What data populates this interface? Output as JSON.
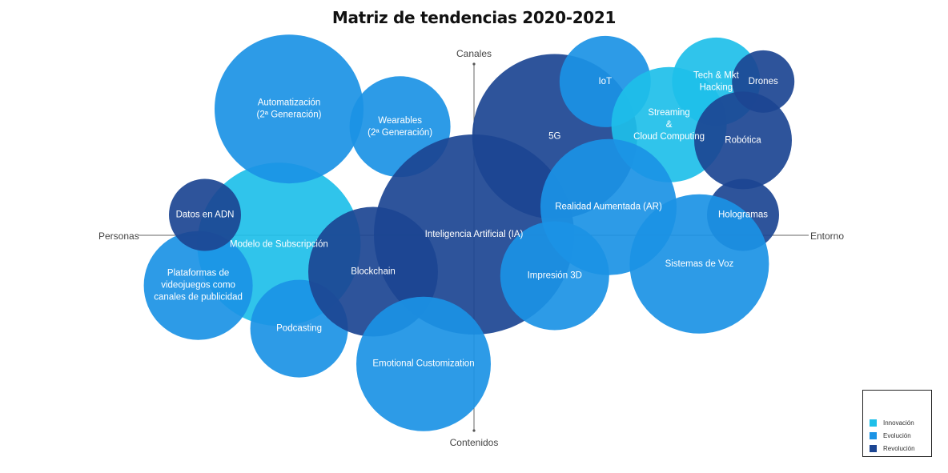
{
  "chart_data": {
    "type": "bubble",
    "title": "Matriz de tendencias 2020-2021",
    "axes": {
      "top": "Canales",
      "bottom": "Contenidos",
      "left": "Personas",
      "right": "Entorno"
    },
    "categories": [
      {
        "name": "Innovación",
        "color": "#1ebfe9"
      },
      {
        "name": "Evolución",
        "color": "#1b93e5"
      },
      {
        "name": "Revolución",
        "color": "#1c4592"
      }
    ],
    "bubbles": [
      {
        "label": [
          "Modelo de Subscripción"
        ],
        "category": "Innovación",
        "x": -0.58,
        "y": -0.05,
        "size": 102
      },
      {
        "label": [
          "Automatización",
          "(2ª Generación)"
        ],
        "category": "Evolución",
        "x": -0.55,
        "y": 0.64,
        "size": 93
      },
      {
        "label": [
          "Wearables",
          "(2ª Generación)"
        ],
        "category": "Evolución",
        "x": -0.22,
        "y": 0.55,
        "size": 63
      },
      {
        "label": [
          "Plataformas de",
          "videojuegos como",
          "canales de publicidad"
        ],
        "category": "Evolución",
        "x": -0.82,
        "y": -0.26,
        "size": 68
      },
      {
        "label": [
          "Podcasting"
        ],
        "category": "Evolución",
        "x": -0.52,
        "y": -0.48,
        "size": 61
      },
      {
        "label": [
          "Blockchain"
        ],
        "category": "Revolución",
        "x": -0.3,
        "y": -0.19,
        "size": 81
      },
      {
        "label": [
          "Datos en ADN"
        ],
        "category": "Revolución",
        "x": -0.8,
        "y": 0.1,
        "size": 45
      },
      {
        "label": [
          "Inteligencia Artificial (IA)"
        ],
        "category": "Revolución",
        "x": 0.0,
        "y": 0.0,
        "size": 125
      },
      {
        "label": [
          "Emotional Customization"
        ],
        "category": "Evolución",
        "x": -0.15,
        "y": -0.66,
        "size": 84
      },
      {
        "label": [
          "5G"
        ],
        "category": "Revolución",
        "x": 0.24,
        "y": 0.5,
        "size": 103
      },
      {
        "label": [
          "IoT"
        ],
        "category": "Evolución",
        "x": 0.39,
        "y": 0.78,
        "size": 57
      },
      {
        "label": [
          "Streaming",
          "&",
          "Cloud Computing"
        ],
        "category": "Innovación",
        "x": 0.58,
        "y": 0.56,
        "size": 72
      },
      {
        "label": [
          "Tech & Mkt",
          "Hacking"
        ],
        "category": "Innovación",
        "x": 0.72,
        "y": 0.78,
        "size": 55
      },
      {
        "label": [
          "Drones"
        ],
        "category": "Revolución",
        "x": 0.86,
        "y": 0.78,
        "size": 39
      },
      {
        "label": [
          "Robótica"
        ],
        "category": "Revolución",
        "x": 0.8,
        "y": 0.48,
        "size": 61
      },
      {
        "label": [
          "Realidad Aumentada (AR)"
        ],
        "category": "Evolución",
        "x": 0.4,
        "y": 0.14,
        "size": 85
      },
      {
        "label": [
          "Impresión 3D"
        ],
        "category": "Evolución",
        "x": 0.24,
        "y": -0.21,
        "size": 68
      },
      {
        "label": [
          "Hologramas"
        ],
        "category": "Revolución",
        "x": 0.8,
        "y": 0.1,
        "size": 45
      },
      {
        "label": [
          "Sistemas de Voz"
        ],
        "category": "Evolución",
        "x": 0.67,
        "y": -0.15,
        "size": 87
      }
    ]
  }
}
